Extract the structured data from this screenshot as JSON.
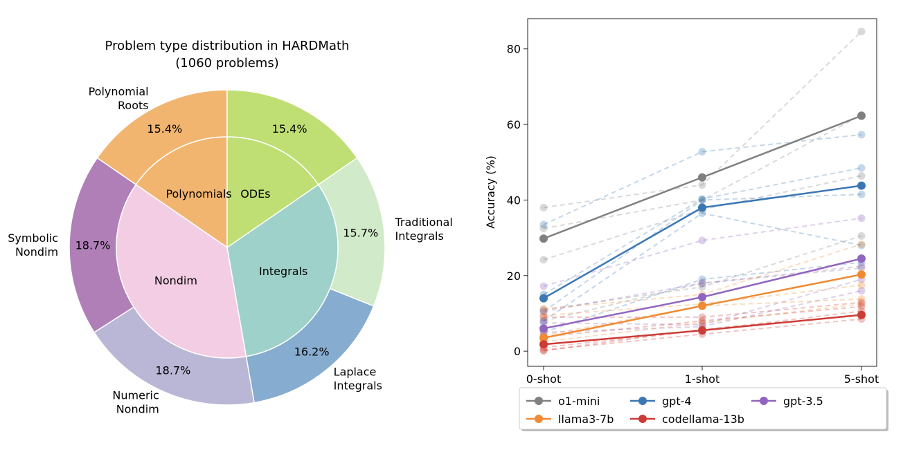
{
  "chart_data": [
    {
      "type": "pie",
      "title": "Problem type distribution in HARDMath",
      "subtitle": "(1060 problems)",
      "outer": [
        {
          "label": "Polynomial\nRoots",
          "percent": 15.4,
          "pct_label": "15.4%",
          "color": "#f2b56f"
        },
        {
          "label": "Symbolic\nNondim",
          "percent": 18.7,
          "pct_label": "18.7%",
          "color": "#b07fb8"
        },
        {
          "label": "Numeric\nNondim",
          "percent": 18.7,
          "pct_label": "18.7%",
          "color": "#bab7d6"
        },
        {
          "label": "Laplace\nIntegrals",
          "percent": 16.2,
          "pct_label": "16.2%",
          "color": "#86accf"
        },
        {
          "label": "Traditional\nIntegrals",
          "percent": 15.7,
          "pct_label": "15.7%",
          "color": "#d1eac9"
        },
        {
          "label": "",
          "percent": 15.4,
          "pct_label": "15.4%",
          "color": "#bfdf74"
        }
      ],
      "inner": [
        {
          "label": "Polynomials",
          "percent": 15.4,
          "color": "#f2b56f"
        },
        {
          "label": "Nondim",
          "percent": 37.4,
          "color": "#f3cde3"
        },
        {
          "label": "Integrals",
          "percent": 31.9,
          "color": "#9ed1c9"
        },
        {
          "label": "ODEs",
          "percent": 15.4,
          "color": "#bfdf74"
        }
      ]
    },
    {
      "type": "line",
      "xlabel": "",
      "ylabel": "Accuracy (%)",
      "categories": [
        "0-shot",
        "1-shot",
        "5-shot"
      ],
      "ylim": [
        -4,
        88
      ],
      "yticks": [
        0,
        20,
        40,
        60,
        80
      ],
      "legend_position": "below",
      "grid": false,
      "series": [
        {
          "name": "o1-mini",
          "color": "#808080",
          "values": [
            29.8,
            46.0,
            62.3
          ]
        },
        {
          "name": "gpt-4",
          "color": "#3a77b5",
          "values": [
            14.0,
            38.0,
            43.8
          ]
        },
        {
          "name": "gpt-3.5",
          "color": "#9165bf",
          "values": [
            6.0,
            14.3,
            24.5
          ]
        },
        {
          "name": "llama3-7b",
          "color": "#f08a33",
          "values": [
            3.5,
            12.0,
            20.3
          ]
        },
        {
          "name": "codellama-13b",
          "color": "#cd3b36",
          "values": [
            1.8,
            5.5,
            9.6
          ]
        }
      ],
      "faint_series": [
        {
          "color": "#808080",
          "values": [
            38.0,
            44.0,
            84.6
          ]
        },
        {
          "color": "#808080",
          "values": [
            32.5,
            40.0,
            62.5
          ]
        },
        {
          "color": "#808080",
          "values": [
            24.2,
            37.5,
            46.4
          ]
        },
        {
          "color": "#808080",
          "values": [
            11.0,
            17.0,
            30.5
          ]
        },
        {
          "color": "#808080",
          "values": [
            8.0,
            18.0,
            22.0
          ]
        },
        {
          "color": "#3a77b5",
          "values": [
            33.5,
            52.8,
            57.3
          ]
        },
        {
          "color": "#3a77b5",
          "values": [
            15.0,
            40.3,
            48.5
          ]
        },
        {
          "color": "#3a77b5",
          "values": [
            10.5,
            40.0,
            41.5
          ]
        },
        {
          "color": "#3a77b5",
          "values": [
            8.0,
            36.5,
            28.0
          ]
        },
        {
          "color": "#3a77b5",
          "values": [
            5.0,
            19.0,
            23.5
          ]
        },
        {
          "color": "#9165bf",
          "values": [
            17.2,
            29.3,
            35.2
          ]
        },
        {
          "color": "#9165bf",
          "values": [
            10.5,
            18.0,
            22.5
          ]
        },
        {
          "color": "#9165bf",
          "values": [
            7.5,
            7.0,
            19.0
          ]
        },
        {
          "color": "#9165bf",
          "values": [
            5.0,
            6.5,
            16.0
          ]
        },
        {
          "color": "#f08a33",
          "values": [
            11.2,
            15.0,
            28.3
          ]
        },
        {
          "color": "#f08a33",
          "values": [
            9.5,
            12.5,
            17.5
          ]
        },
        {
          "color": "#f08a33",
          "values": [
            4.2,
            12.0,
            13.8
          ]
        },
        {
          "color": "#f08a33",
          "values": [
            2.5,
            7.5,
            12.5
          ]
        },
        {
          "color": "#cd3b36",
          "values": [
            9.0,
            9.0,
            12.9
          ]
        },
        {
          "color": "#cd3b36",
          "values": [
            3.8,
            8.0,
            11.8
          ]
        },
        {
          "color": "#cd3b36",
          "values": [
            1.0,
            5.5,
            10.6
          ]
        },
        {
          "color": "#cd3b36",
          "values": [
            0.3,
            4.5,
            8.5
          ]
        },
        {
          "color": "#cd3b36",
          "values": [
            0.1,
            5.8,
            9.5
          ]
        }
      ]
    }
  ]
}
